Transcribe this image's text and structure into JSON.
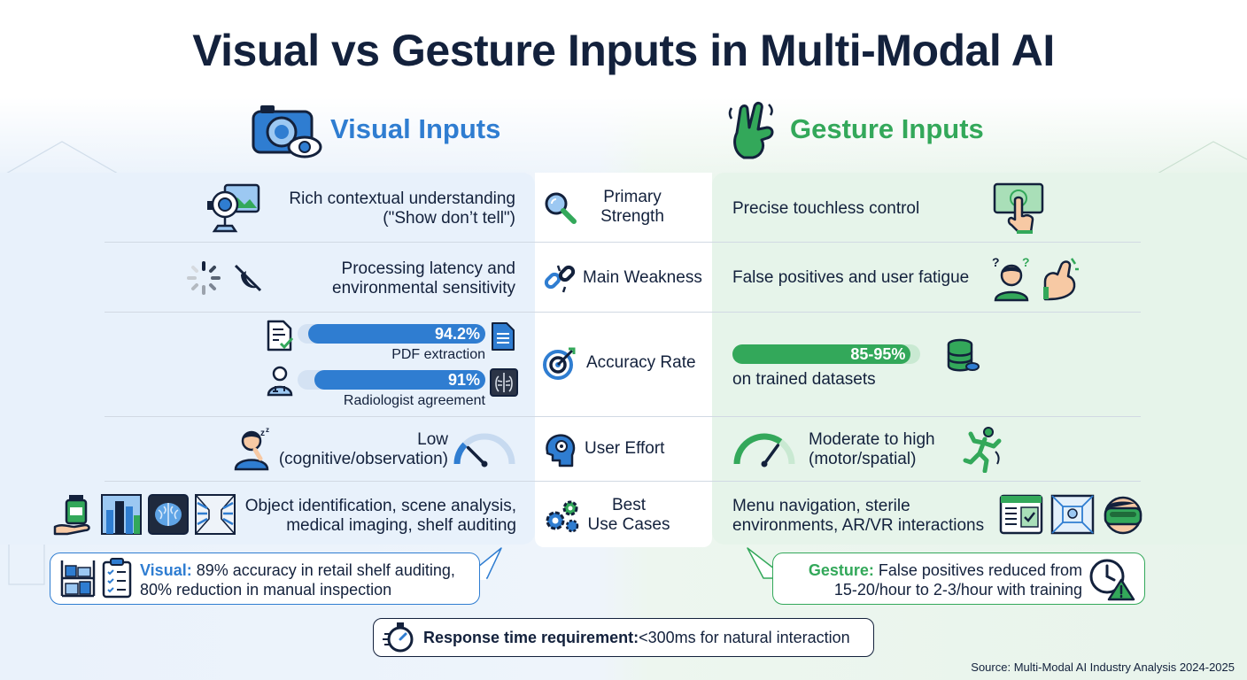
{
  "title": "Visual vs Gesture Inputs in Multi-Modal AI",
  "visual": {
    "heading": "Visual Inputs",
    "color": "#2f7dd1",
    "strength": [
      "Rich contextual understanding",
      "(\"Show don’t tell\")"
    ],
    "weakness": [
      "Processing latency and",
      "environmental sensitivity"
    ],
    "accuracy": [
      {
        "label": "94.2%",
        "value": 94.2,
        "caption": "PDF extraction"
      },
      {
        "label": "91%",
        "value": 91,
        "caption": "Radiologist agreement"
      }
    ],
    "effort": [
      "Low",
      "(cognitive/observation)"
    ],
    "effort_level": 0.25,
    "use_cases": [
      "Object identification, scene analysis,",
      "medical imaging, shelf auditing"
    ],
    "callout": {
      "lead": "Visual:",
      "line1": " 89% accuracy in retail shelf auditing,",
      "line2": "80% reduction in manual inspection"
    }
  },
  "gesture": {
    "heading": "Gesture Inputs",
    "color": "#33a85a",
    "strength": [
      "Precise touchless control"
    ],
    "weakness": [
      "False positives and user fatigue"
    ],
    "accuracy": {
      "label": "85-95%",
      "value": 95,
      "caption": "on trained datasets"
    },
    "effort": [
      "Moderate to high",
      "(motor/spatial)"
    ],
    "effort_level": 0.7,
    "use_cases": [
      "Menu navigation, sterile",
      "environments, AR/VR interactions"
    ],
    "callout": {
      "lead": "Gesture:",
      "line1": " False positives reduced from",
      "line2": "15-20/hour to 2-3/hour with training"
    }
  },
  "criteria": {
    "strength": [
      "Primary",
      "Strength"
    ],
    "weakness": "Main Weakness",
    "accuracy": "Accuracy Rate",
    "effort": "User Effort",
    "use_cases": [
      "Best",
      "Use Cases"
    ]
  },
  "response": {
    "lead": "Response time requirement:",
    "rest": " <300ms for natural interaction"
  },
  "source": "Source: Multi-Modal AI Industry Analysis 2024-2025",
  "icons": [
    "camera-eye-icon",
    "peace-hand-icon",
    "webcam-icon",
    "spinner-icon",
    "no-light-icon",
    "document-check-icon",
    "document-icon",
    "doctor-icon",
    "xray-icon",
    "sleeping-person-icon",
    "gauge-icon",
    "medicine-bottle-icon",
    "city-icon",
    "brain-scan-icon",
    "shelf-icon",
    "magnifier-icon",
    "broken-link-icon",
    "target-icon",
    "head-gear-icon",
    "gears-icon",
    "touch-screen-icon",
    "confused-person-icon",
    "flexed-arm-icon",
    "database-icon",
    "running-person-icon",
    "menu-screen-icon",
    "sterile-room-icon",
    "vr-headset-icon",
    "boxes-icon",
    "checklist-icon",
    "clock-warning-icon",
    "stopwatch-icon"
  ]
}
